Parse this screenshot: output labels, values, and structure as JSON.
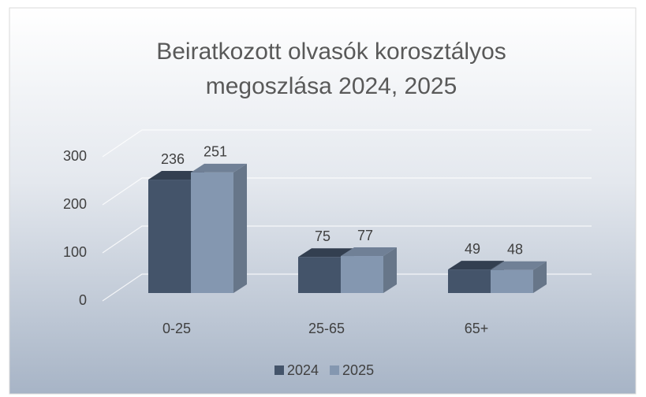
{
  "chart_data": {
    "type": "bar",
    "title": "Beiratkozott olvasók korosztályos megoszlása 2024, 2025",
    "categories": [
      "0-25",
      "25-65",
      "65+"
    ],
    "series": [
      {
        "name": "2024",
        "color": "#44546a",
        "values": [
          236,
          75,
          49
        ]
      },
      {
        "name": "2025",
        "color": "#8497b0",
        "values": [
          251,
          77,
          48
        ]
      }
    ],
    "ylim": [
      0,
      300
    ],
    "yticks": [
      0,
      100,
      200,
      300
    ],
    "grid": true,
    "legend": "bottom"
  }
}
